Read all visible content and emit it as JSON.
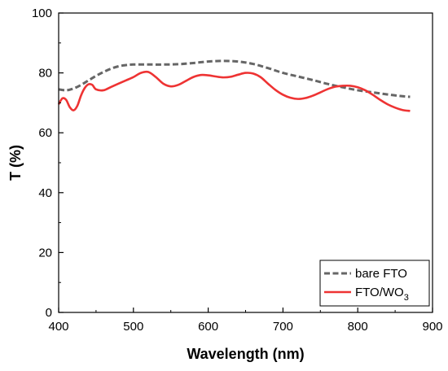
{
  "chart_data": {
    "type": "line",
    "title": "",
    "xlabel": "Wavelength (nm)",
    "ylabel": "T (%)",
    "xlim": [
      400,
      900
    ],
    "ylim": [
      0,
      100
    ],
    "xticks": [
      400,
      500,
      600,
      700,
      800,
      900
    ],
    "yticks": [
      0,
      20,
      40,
      60,
      80,
      100
    ],
    "grid": false,
    "legend_position": "bottom-right",
    "series": [
      {
        "name": "bare FTO",
        "style": "dashed",
        "color": "#666666",
        "x": [
          400,
          410,
          420,
          430,
          440,
          450,
          460,
          470,
          480,
          490,
          500,
          520,
          540,
          560,
          580,
          600,
          620,
          640,
          660,
          680,
          700,
          720,
          740,
          760,
          780,
          800,
          820,
          840,
          860,
          870
        ],
        "y": [
          74.5,
          74.2,
          74.8,
          76.0,
          77.5,
          79.0,
          80.3,
          81.4,
          82.2,
          82.6,
          82.8,
          82.8,
          82.8,
          82.9,
          83.3,
          83.8,
          84.0,
          83.8,
          83.0,
          81.6,
          80.0,
          78.8,
          77.6,
          76.3,
          75.2,
          74.2,
          73.5,
          72.8,
          72.2,
          72.0
        ]
      },
      {
        "name": "FTO/WO3",
        "label_main": "FTO/WO",
        "label_sub": "3",
        "style": "solid",
        "color": "#ee3333",
        "x": [
          400,
          405,
          410,
          415,
          420,
          425,
          430,
          435,
          440,
          445,
          450,
          460,
          470,
          480,
          490,
          500,
          510,
          520,
          530,
          540,
          550,
          560,
          570,
          580,
          590,
          600,
          610,
          620,
          630,
          640,
          650,
          660,
          670,
          680,
          690,
          700,
          710,
          720,
          730,
          740,
          750,
          760,
          770,
          780,
          790,
          800,
          810,
          820,
          830,
          840,
          850,
          860,
          870
        ],
        "y": [
          69.5,
          71.5,
          71.0,
          68.5,
          67.5,
          69.0,
          72.5,
          75.0,
          76.2,
          76.0,
          74.5,
          74.2,
          75.3,
          76.4,
          77.5,
          78.6,
          80.0,
          80.3,
          78.6,
          76.4,
          75.5,
          76.0,
          77.3,
          78.6,
          79.3,
          79.2,
          78.8,
          78.5,
          78.7,
          79.4,
          80.0,
          79.8,
          78.6,
          76.4,
          74.3,
          72.7,
          71.7,
          71.3,
          71.6,
          72.4,
          73.5,
          74.6,
          75.4,
          75.7,
          75.7,
          75.2,
          74.2,
          72.7,
          71.0,
          69.5,
          68.4,
          67.6,
          67.3
        ]
      }
    ]
  }
}
